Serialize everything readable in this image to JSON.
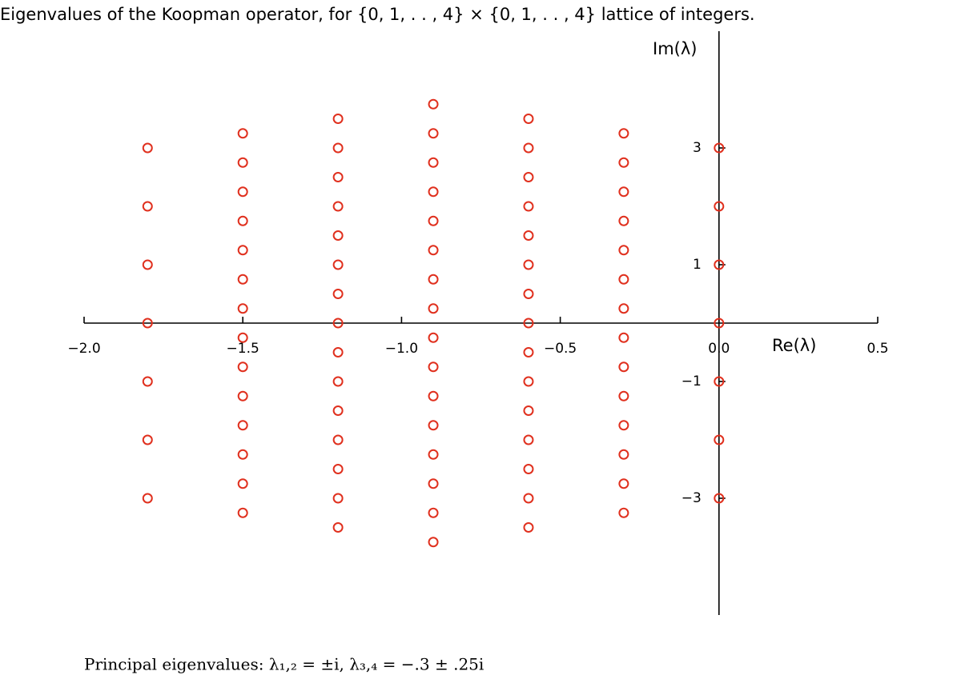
{
  "chart_data": {
    "type": "scatter",
    "title": "Eigenvalues of the Koopman operator, for {0, 1, . . , 4} × {0, 1, . . , 4} lattice of integers.",
    "x_label": "Re(λ)",
    "y_label": "Im(λ)",
    "annotation": "Principal eigenvalues: λ₁,₂ = ±i, λ₃,₄ = −.3 ± .25i",
    "color": "#e0301e",
    "x": [
      0,
      0,
      0,
      0,
      0,
      0,
      0,
      -0.3,
      -0.3,
      -0.3,
      -0.3,
      -0.3,
      -0.3,
      -0.3,
      -0.3,
      -0.3,
      -0.3,
      -0.3,
      -0.3,
      -0.3,
      -0.3,
      -0.6,
      -0.6,
      -0.6,
      -0.6,
      -0.6,
      -0.6,
      -0.6,
      -0.6,
      -0.6,
      -0.6,
      -0.6,
      -0.6,
      -0.6,
      -0.6,
      -0.6,
      -0.9,
      -0.9,
      -0.9,
      -0.9,
      -0.9,
      -0.9,
      -0.9,
      -0.9,
      -0.9,
      -0.9,
      -0.9,
      -0.9,
      -0.9,
      -0.9,
      -0.9,
      -0.9,
      -1.2,
      -1.2,
      -1.2,
      -1.2,
      -1.2,
      -1.2,
      -1.2,
      -1.2,
      -1.2,
      -1.2,
      -1.2,
      -1.2,
      -1.2,
      -1.2,
      -1.2,
      -1.5,
      -1.5,
      -1.5,
      -1.5,
      -1.5,
      -1.5,
      -1.5,
      -1.5,
      -1.5,
      -1.5,
      -1.5,
      -1.5,
      -1.5,
      -1.5,
      -1.8,
      -1.8,
      -1.8,
      -1.8,
      -1.8,
      -1.8,
      -1.8
    ],
    "y": [
      3,
      2,
      1,
      0,
      -1,
      -2,
      -3,
      3.25,
      2.75,
      2.25,
      1.75,
      1.25,
      0.75,
      0.25,
      -0.25,
      -0.75,
      -1.25,
      -1.75,
      -2.25,
      -2.75,
      -3.25,
      3.5,
      3,
      2.5,
      2,
      1.5,
      1,
      0.5,
      0,
      -0.5,
      -1,
      -1.5,
      -2,
      -2.5,
      -3,
      -3.5,
      3.75,
      3.25,
      2.75,
      2.25,
      1.75,
      1.25,
      0.75,
      0.25,
      -0.25,
      -0.75,
      -1.25,
      -1.75,
      -2.25,
      -2.75,
      -3.25,
      -3.75,
      3.5,
      3,
      2.5,
      2,
      1.5,
      1,
      0.5,
      0,
      -0.5,
      -1,
      -1.5,
      -2,
      -2.5,
      -3,
      -3.5,
      3.25,
      2.75,
      2.25,
      1.75,
      1.25,
      0.75,
      0.25,
      -0.25,
      -0.75,
      -1.25,
      -1.75,
      -2.25,
      -2.75,
      -3.25,
      3,
      2,
      1,
      0,
      -1,
      -2,
      -3
    ],
    "xlim": [
      -2,
      0.5
    ],
    "ylim": [
      -5,
      5
    ],
    "xticks": [
      {
        "value": -2,
        "label": "−2.0"
      },
      {
        "value": -1.5,
        "label": "−1.5"
      },
      {
        "value": -1,
        "label": "−1.0"
      },
      {
        "value": -0.5,
        "label": "−0.5"
      },
      {
        "value": 0,
        "label": "0.0"
      },
      {
        "value": 0.5,
        "label": "0.5"
      }
    ],
    "yticks": [
      3,
      1,
      {
        "value": -1,
        "label": "−1"
      },
      {
        "value": -3,
        "label": "−3"
      }
    ]
  }
}
